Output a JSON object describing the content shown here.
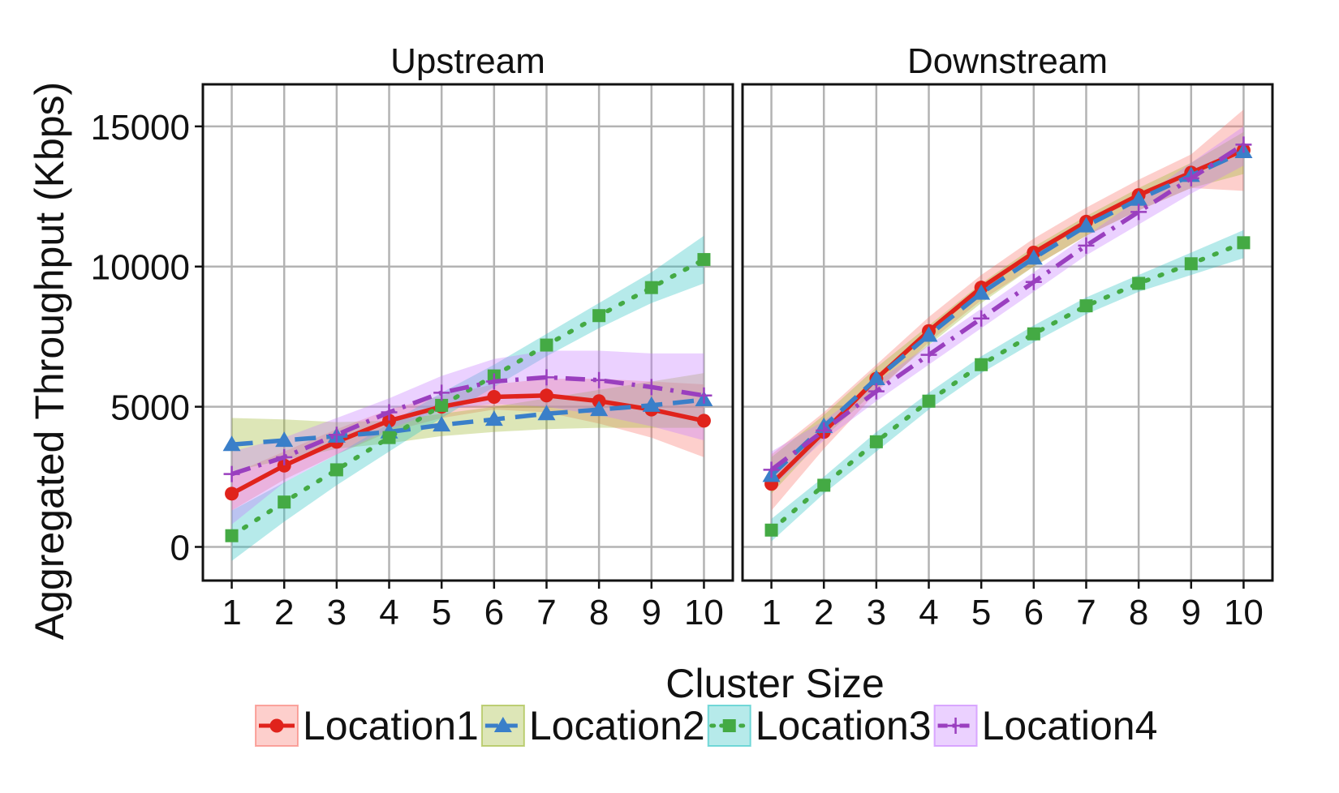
{
  "chart_data": {
    "type": "line",
    "ylabel": "Aggregated Throughput (Kbps)",
    "xlabel": "Cluster Size",
    "x": [
      1,
      2,
      3,
      4,
      5,
      6,
      7,
      8,
      9,
      10
    ],
    "ylim": [
      -1200,
      16500
    ],
    "yticks": [
      0,
      5000,
      10000,
      15000
    ],
    "ytick_labels": [
      "0",
      "5000",
      "10000",
      "15000"
    ],
    "xlim": [
      0.45,
      10.55
    ],
    "grid": true,
    "legend_position": "bottom",
    "series_styles": [
      {
        "name": "Location1",
        "color": "#e0231c",
        "band_color": "#f8766d",
        "marker": "circle",
        "dash": "none"
      },
      {
        "name": "Location2",
        "color": "#3a7fc9",
        "band_color": "#9db832",
        "marker": "triangle",
        "dash": "long"
      },
      {
        "name": "Location3",
        "color": "#44aa44",
        "band_color": "#2ec4c4",
        "marker": "square",
        "dash": "dot"
      },
      {
        "name": "Location4",
        "color": "#9a3fbf",
        "band_color": "#c77cff",
        "marker": "plus",
        "dash": "dashdot"
      }
    ],
    "panels": [
      {
        "title": "Upstream",
        "series": [
          {
            "name": "Location1",
            "values": [
              1900,
              2900,
              3750,
              4500,
              5000,
              5350,
              5400,
              5200,
              4900,
              4500
            ],
            "band_lower": [
              1300,
              2400,
              3300,
              4100,
              4600,
              4900,
              4800,
              4400,
              3900,
              3200
            ],
            "band_upper": [
              2600,
              3400,
              4200,
              4900,
              5400,
              5800,
              6000,
              6000,
              5900,
              5800
            ]
          },
          {
            "name": "Location2",
            "values": [
              3650,
              3800,
              3950,
              4100,
              4350,
              4550,
              4750,
              4900,
              5050,
              5250
            ],
            "band_lower": [
              2700,
              3100,
              3500,
              3700,
              3950,
              4100,
              4200,
              4250,
              4250,
              4250
            ],
            "band_upper": [
              4600,
              4550,
              4450,
              4500,
              4750,
              5000,
              5300,
              5600,
              5900,
              6200
            ]
          },
          {
            "name": "Location3",
            "values": [
              400,
              1600,
              2750,
              3900,
              5050,
              6100,
              7200,
              8250,
              9250,
              10250
            ],
            "band_lower": [
              -500,
              900,
              2200,
              3400,
              4600,
              5700,
              6800,
              7800,
              8700,
              9400
            ],
            "band_upper": [
              1300,
              2300,
              3300,
              4400,
              5500,
              6500,
              7600,
              8700,
              9800,
              11100
            ]
          },
          {
            "name": "Location4",
            "values": [
              2600,
              3200,
              4000,
              4800,
              5500,
              5900,
              6050,
              5950,
              5700,
              5400
            ],
            "band_lower": [
              800,
              2300,
              3300,
              4200,
              4900,
              5100,
              5000,
              4700,
              4300,
              3800
            ],
            "band_upper": [
              3400,
              3900,
              4600,
              5300,
              6100,
              6700,
              7000,
              7000,
              6900,
              6900
            ]
          }
        ]
      },
      {
        "title": "Downstream",
        "series": [
          {
            "name": "Location1",
            "values": [
              2250,
              4100,
              6000,
              7700,
              9250,
              10500,
              11600,
              12550,
              13350,
              14150
            ],
            "band_lower": [
              1300,
              3500,
              5500,
              7300,
              8800,
              10000,
              11100,
              12000,
              12800,
              12700
            ],
            "band_upper": [
              3300,
              4800,
              6500,
              8200,
              9700,
              11000,
              12100,
              13100,
              14000,
              15600
            ]
          },
          {
            "name": "Location2",
            "values": [
              2550,
              4300,
              6000,
              7550,
              9050,
              10300,
              11450,
              12400,
              13250,
              14100
            ],
            "band_lower": [
              1900,
              3900,
              5600,
              7200,
              8700,
              10000,
              11100,
              12000,
              12800,
              13300
            ],
            "band_upper": [
              3200,
              4700,
              6400,
              7900,
              9400,
              10700,
              11800,
              12800,
              13700,
              14800
            ]
          },
          {
            "name": "Location3",
            "values": [
              600,
              2200,
              3750,
              5200,
              6500,
              7600,
              8600,
              9400,
              10100,
              10850
            ],
            "band_lower": [
              200,
              1900,
              3400,
              4900,
              6200,
              7300,
              8300,
              9100,
              9700,
              10300
            ],
            "band_upper": [
              1000,
              2500,
              4100,
              5500,
              6800,
              7900,
              8900,
              9700,
              10500,
              11300
            ]
          },
          {
            "name": "Location4",
            "values": [
              2750,
              4150,
              5550,
              6850,
              8150,
              9450,
              10750,
              11950,
              13150,
              14350
            ],
            "band_lower": [
              2100,
              3800,
              5200,
              6500,
              7800,
              9100,
              10400,
              11500,
              12600,
              13600
            ],
            "band_upper": [
              3400,
              4500,
              5900,
              7200,
              8500,
              9800,
              11100,
              12400,
              13700,
              15000
            ]
          }
        ]
      }
    ]
  }
}
